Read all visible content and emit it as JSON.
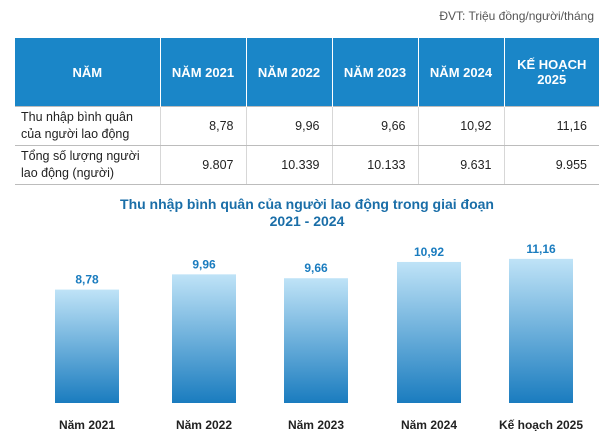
{
  "unit_note": "ĐVT: Triệu đồng/người/tháng",
  "table": {
    "header": [
      "NĂM",
      "NĂM 2021",
      "NĂM 2022",
      "NĂM 2023",
      "NĂM 2024",
      "KẾ HOẠCH 2025"
    ],
    "rows": [
      {
        "label": "Thu nhập bình quân của người lao động",
        "values": [
          "8,78",
          "9,96",
          "9,66",
          "10,92",
          "11,16"
        ]
      },
      {
        "label": "Tổng số lượng người lao động (người)",
        "values": [
          "9.807",
          "10.339",
          "10.133",
          "9.631",
          "9.955"
        ]
      }
    ]
  },
  "chart_data": {
    "type": "bar",
    "title_line1": "Thu nhập bình quân của người lao động trong giai đoạn",
    "title_line2": "2021 - 2024",
    "categories": [
      "Năm 2021",
      "Năm 2022",
      "Năm 2023",
      "Năm 2024",
      "Kế hoạch 2025"
    ],
    "values": [
      8.78,
      9.96,
      9.66,
      10.92,
      11.16
    ],
    "value_labels": [
      "8,78",
      "9,96",
      "9,66",
      "10,92",
      "11,16"
    ],
    "ylim": [
      0,
      12
    ],
    "grid": false,
    "colors": {
      "bar_top": "#bfe3f7",
      "bar_bottom": "#1a7cbf",
      "label": "#1a7cbf"
    }
  }
}
